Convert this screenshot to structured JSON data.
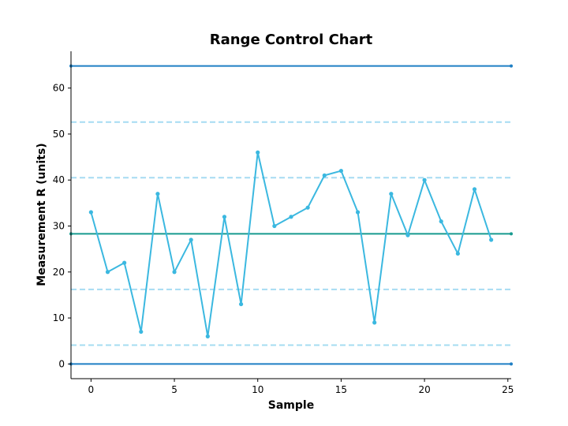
{
  "chart_data": {
    "type": "line",
    "title": "Range Control Chart",
    "xlabel": "Sample",
    "ylabel": "Measurement R (units)",
    "xlim": [
      -1.2,
      25.2
    ],
    "ylim": [
      -3.2,
      68
    ],
    "x_ticks": [
      0,
      5,
      10,
      15,
      20,
      25
    ],
    "y_ticks": [
      0,
      10,
      20,
      30,
      40,
      50,
      60
    ],
    "grid": false,
    "series": [
      {
        "x": [
          0,
          1,
          2,
          3,
          4,
          5,
          6,
          7,
          8,
          9,
          10,
          11,
          12,
          13,
          14,
          15,
          16,
          17,
          18,
          19,
          20,
          21,
          22,
          23,
          24
        ],
        "values": [
          33,
          20,
          22,
          7,
          37,
          20,
          27,
          6,
          32,
          13,
          46,
          30,
          32,
          34,
          41,
          42,
          33,
          9,
          37,
          28,
          40,
          31,
          24,
          38,
          27
        ],
        "color": "#3bb8e0"
      }
    ],
    "reference_lines": [
      {
        "y": 64.8,
        "style": "solid",
        "color": "#1f7fc4"
      },
      {
        "y": 52.6,
        "style": "dashed",
        "color": "#a6dcf2"
      },
      {
        "y": 40.5,
        "style": "dashed",
        "color": "#a6dcf2"
      },
      {
        "y": 28.3,
        "style": "solid",
        "color": "#179a8f"
      },
      {
        "y": 16.2,
        "style": "dashed",
        "color": "#a6dcf2"
      },
      {
        "y": 4.1,
        "style": "dashed",
        "color": "#a6dcf2"
      },
      {
        "y": 0,
        "style": "solid",
        "color": "#1f7fc4"
      }
    ]
  }
}
